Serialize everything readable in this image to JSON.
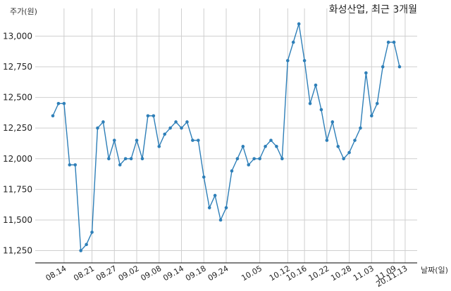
{
  "chart_data": {
    "type": "line",
    "title": "화성산업, 최근 3개월",
    "xlabel": "날짜(일)",
    "ylabel": "주가(원)",
    "ylim": [
      11150,
      13180
    ],
    "yticks": [
      11250,
      11500,
      11750,
      12000,
      12250,
      12500,
      12750,
      13000
    ],
    "ytick_labels": [
      "11,250",
      "11,500",
      "11,750",
      "12,000",
      "12,250",
      "12,500",
      "12,750",
      "13,000"
    ],
    "xtick_labels": [
      "08.14",
      "08.21",
      "08.27",
      "09.02",
      "09.08",
      "09.14",
      "09.18",
      "09.24",
      "10.05",
      "10.12",
      "10.16",
      "10.22",
      "10.28",
      "11.03",
      "11.09",
      "20.11.13"
    ],
    "xtick_index": [
      2,
      7,
      11,
      15,
      19,
      23,
      27,
      31,
      37,
      42,
      45,
      49,
      53,
      57,
      61,
      63
    ],
    "grid": true,
    "line_color": "#2e7fb8",
    "values": [
      12350,
      12450,
      12450,
      11950,
      11950,
      11250,
      11300,
      11400,
      12250,
      12300,
      12000,
      12150,
      11950,
      12000,
      12000,
      12150,
      12000,
      12350,
      12350,
      12100,
      12200,
      12250,
      12300,
      12250,
      12300,
      12150,
      12150,
      11850,
      11600,
      11700,
      11500,
      11600,
      11900,
      12000,
      12100,
      11950,
      12000,
      12000,
      12100,
      12150,
      12100,
      12000,
      12800,
      12950,
      13100,
      12800,
      12450,
      12600,
      12400,
      12150,
      12300,
      12100,
      12000,
      12050,
      12150,
      12250,
      12700,
      12350,
      12450,
      12750,
      12950,
      12950,
      12750
    ]
  }
}
